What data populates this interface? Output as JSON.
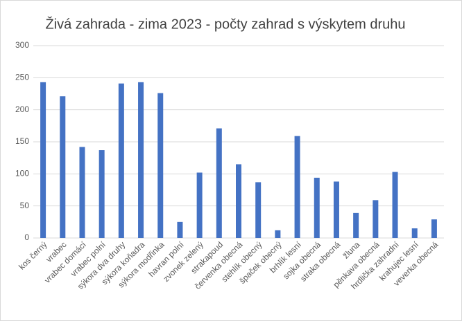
{
  "chart_data": {
    "type": "bar",
    "title": "Živá zahrada - zima 2023 - počty zahrad s výskytem druhu",
    "categories": [
      "kos černý",
      "vrabec",
      "vrabec domácí",
      "vrabec polní",
      "sýkora dva druhy",
      "sýkora koňadra",
      "sýkora modřinka",
      "havran polní",
      "zvonek zelený",
      "strakapoud",
      "červenka obecná",
      "stehlík obecný",
      "špaček obecný",
      "brhlík lesní",
      "sojka obecná",
      "straka obecná",
      "žluna",
      "pěnkava obecná",
      "hrdlička zahradní",
      "krahujec lesní",
      "veverka obecná"
    ],
    "values": [
      243,
      221,
      142,
      137,
      241,
      243,
      226,
      25,
      102,
      171,
      115,
      87,
      12,
      159,
      94,
      88,
      39,
      59,
      103,
      15,
      29
    ],
    "color": "#4472c4",
    "ylim": [
      0,
      300
    ],
    "yticks": [
      0,
      50,
      100,
      150,
      200,
      250,
      300
    ],
    "grid": true
  }
}
